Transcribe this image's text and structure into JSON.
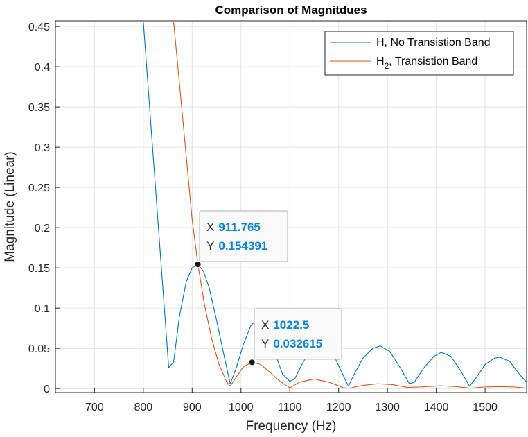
{
  "chart_data": {
    "type": "line",
    "title": "Comparison of Magnitdues",
    "xlabel": "Frequency (Hz)",
    "ylabel": "Magnitude (Linear)",
    "xlim": [
      620,
      1585
    ],
    "ylim": [
      -0.005,
      0.457
    ],
    "grid": true,
    "legend_position": "top-right",
    "xticks": [
      700,
      800,
      900,
      1000,
      1100,
      1200,
      1300,
      1400,
      1500
    ],
    "xtick_labels": [
      "700",
      "800",
      "900",
      "1000",
      "1100",
      "1200",
      "1300",
      "1400",
      "1500"
    ],
    "yticks": [
      0,
      0.05,
      0.1,
      0.15,
      0.2,
      0.25,
      0.3,
      0.35,
      0.4,
      0.45
    ],
    "ytick_labels": [
      "0",
      "0.05",
      "0.1",
      "0.15",
      "0.2",
      "0.25",
      "0.3",
      "0.35",
      "0.4",
      "0.45"
    ],
    "series": [
      {
        "name": "H, No Transistion Band",
        "name_main": "H, No Transistion Band",
        "name_sub": "",
        "name_tail": "",
        "color": "#0072BD",
        "x": [
          800,
          852,
          862,
          874,
          888,
          900,
          911.765,
          923,
          935,
          950,
          965,
          978,
          990,
          1005,
          1020,
          1035,
          1050,
          1065,
          1085,
          1100,
          1110,
          1125,
          1145,
          1165,
          1185,
          1205,
          1220,
          1232,
          1250,
          1270,
          1285,
          1305,
          1325,
          1345,
          1355,
          1375,
          1395,
          1410,
          1430,
          1450,
          1468,
          1480,
          1500,
          1520,
          1530,
          1550,
          1570,
          1585
        ],
        "y": [
          0.456,
          0.026,
          0.033,
          0.09,
          0.133,
          0.15,
          0.154391,
          0.146,
          0.125,
          0.085,
          0.042,
          0.006,
          0.025,
          0.055,
          0.078,
          0.088,
          0.079,
          0.052,
          0.018,
          0.009,
          0.012,
          0.03,
          0.052,
          0.058,
          0.048,
          0.022,
          0.003,
          0.018,
          0.038,
          0.05,
          0.053,
          0.046,
          0.027,
          0.006,
          0.008,
          0.026,
          0.04,
          0.045,
          0.04,
          0.022,
          0.003,
          0.012,
          0.03,
          0.038,
          0.039,
          0.034,
          0.018,
          0.008
        ]
      },
      {
        "name": "H_2, Transistion Band",
        "name_main": "H",
        "name_sub": "2",
        "name_tail": ", Transistion Band",
        "color": "#D95319",
        "x": [
          862,
          880,
          900,
          911.765,
          925,
          940,
          955,
          970,
          978,
          990,
          1005,
          1022.5,
          1040,
          1060,
          1080,
          1100,
          1120,
          1150,
          1180,
          1210,
          1222,
          1250,
          1280,
          1310,
          1340,
          1370,
          1410,
          1440,
          1470,
          1500,
          1530,
          1560,
          1585
        ],
        "y": [
          0.456,
          0.34,
          0.21,
          0.154391,
          0.105,
          0.062,
          0.03,
          0.009,
          0.003,
          0.014,
          0.027,
          0.032615,
          0.03,
          0.02,
          0.009,
          0.001,
          0.008,
          0.012,
          0.008,
          0.001,
          0.0005,
          0.004,
          0.006,
          0.005,
          0.0015,
          0.002,
          0.0035,
          0.0025,
          0.0005,
          0.002,
          0.0025,
          0.002,
          0.0005
        ]
      }
    ],
    "datatips": [
      {
        "x_label": "X",
        "x_value": "911.765",
        "y_label": "Y",
        "y_value": "0.154391",
        "x": 911.765,
        "y": 0.154391
      },
      {
        "x_label": "X",
        "x_value": "1022.5",
        "y_label": "Y",
        "y_value": "0.032615",
        "x": 1022.5,
        "y": 0.032615
      }
    ]
  }
}
